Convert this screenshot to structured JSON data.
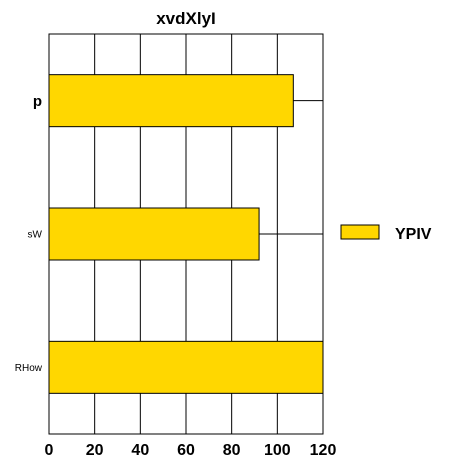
{
  "chart_data": {
    "type": "bar",
    "orientation": "horizontal",
    "title": "xvdXlyI",
    "categories": [
      "p",
      "sW",
      "RHow"
    ],
    "series": [
      {
        "name": "YPIV",
        "values": [
          107,
          92,
          120
        ],
        "color": "#FFD700"
      }
    ],
    "xlim": [
      0,
      120
    ],
    "x_ticks": [
      0,
      20,
      40,
      60,
      80,
      100,
      120
    ],
    "grid": true,
    "legend": "right"
  }
}
